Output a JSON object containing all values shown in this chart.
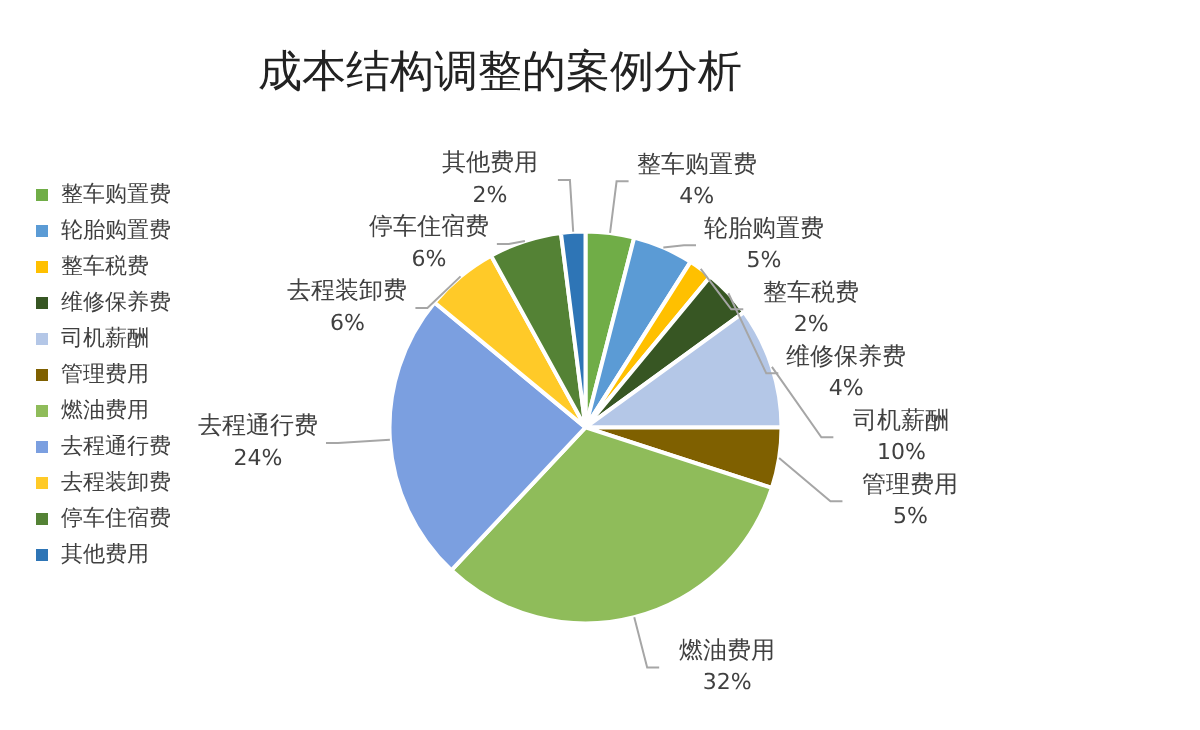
{
  "chart_data": {
    "type": "pie",
    "title": "成本结构调整的案例分析",
    "categories": [
      "整车购置费",
      "轮胎购置费",
      "整车税费",
      "维修保养费",
      "司机薪酬",
      "管理费用",
      "燃油费用",
      "去程通行费",
      "去程装卸费",
      "停车住宿费",
      "其他费用"
    ],
    "values": [
      4,
      5,
      2,
      4,
      10,
      5,
      32,
      24,
      6,
      6,
      2
    ],
    "value_labels": [
      "4%",
      "5%",
      "2%",
      "4%",
      "10%",
      "5%",
      "32%",
      "24%",
      "6%",
      "6%",
      "2%"
    ],
    "colors": [
      "#70ad47",
      "#5b9bd5",
      "#ffc000",
      "#375623",
      "#b4c7e7",
      "#7f6000",
      "#8fbc5a",
      "#7b9fe0",
      "#ffca28",
      "#548235",
      "#2e75b6"
    ],
    "legend": "left"
  }
}
